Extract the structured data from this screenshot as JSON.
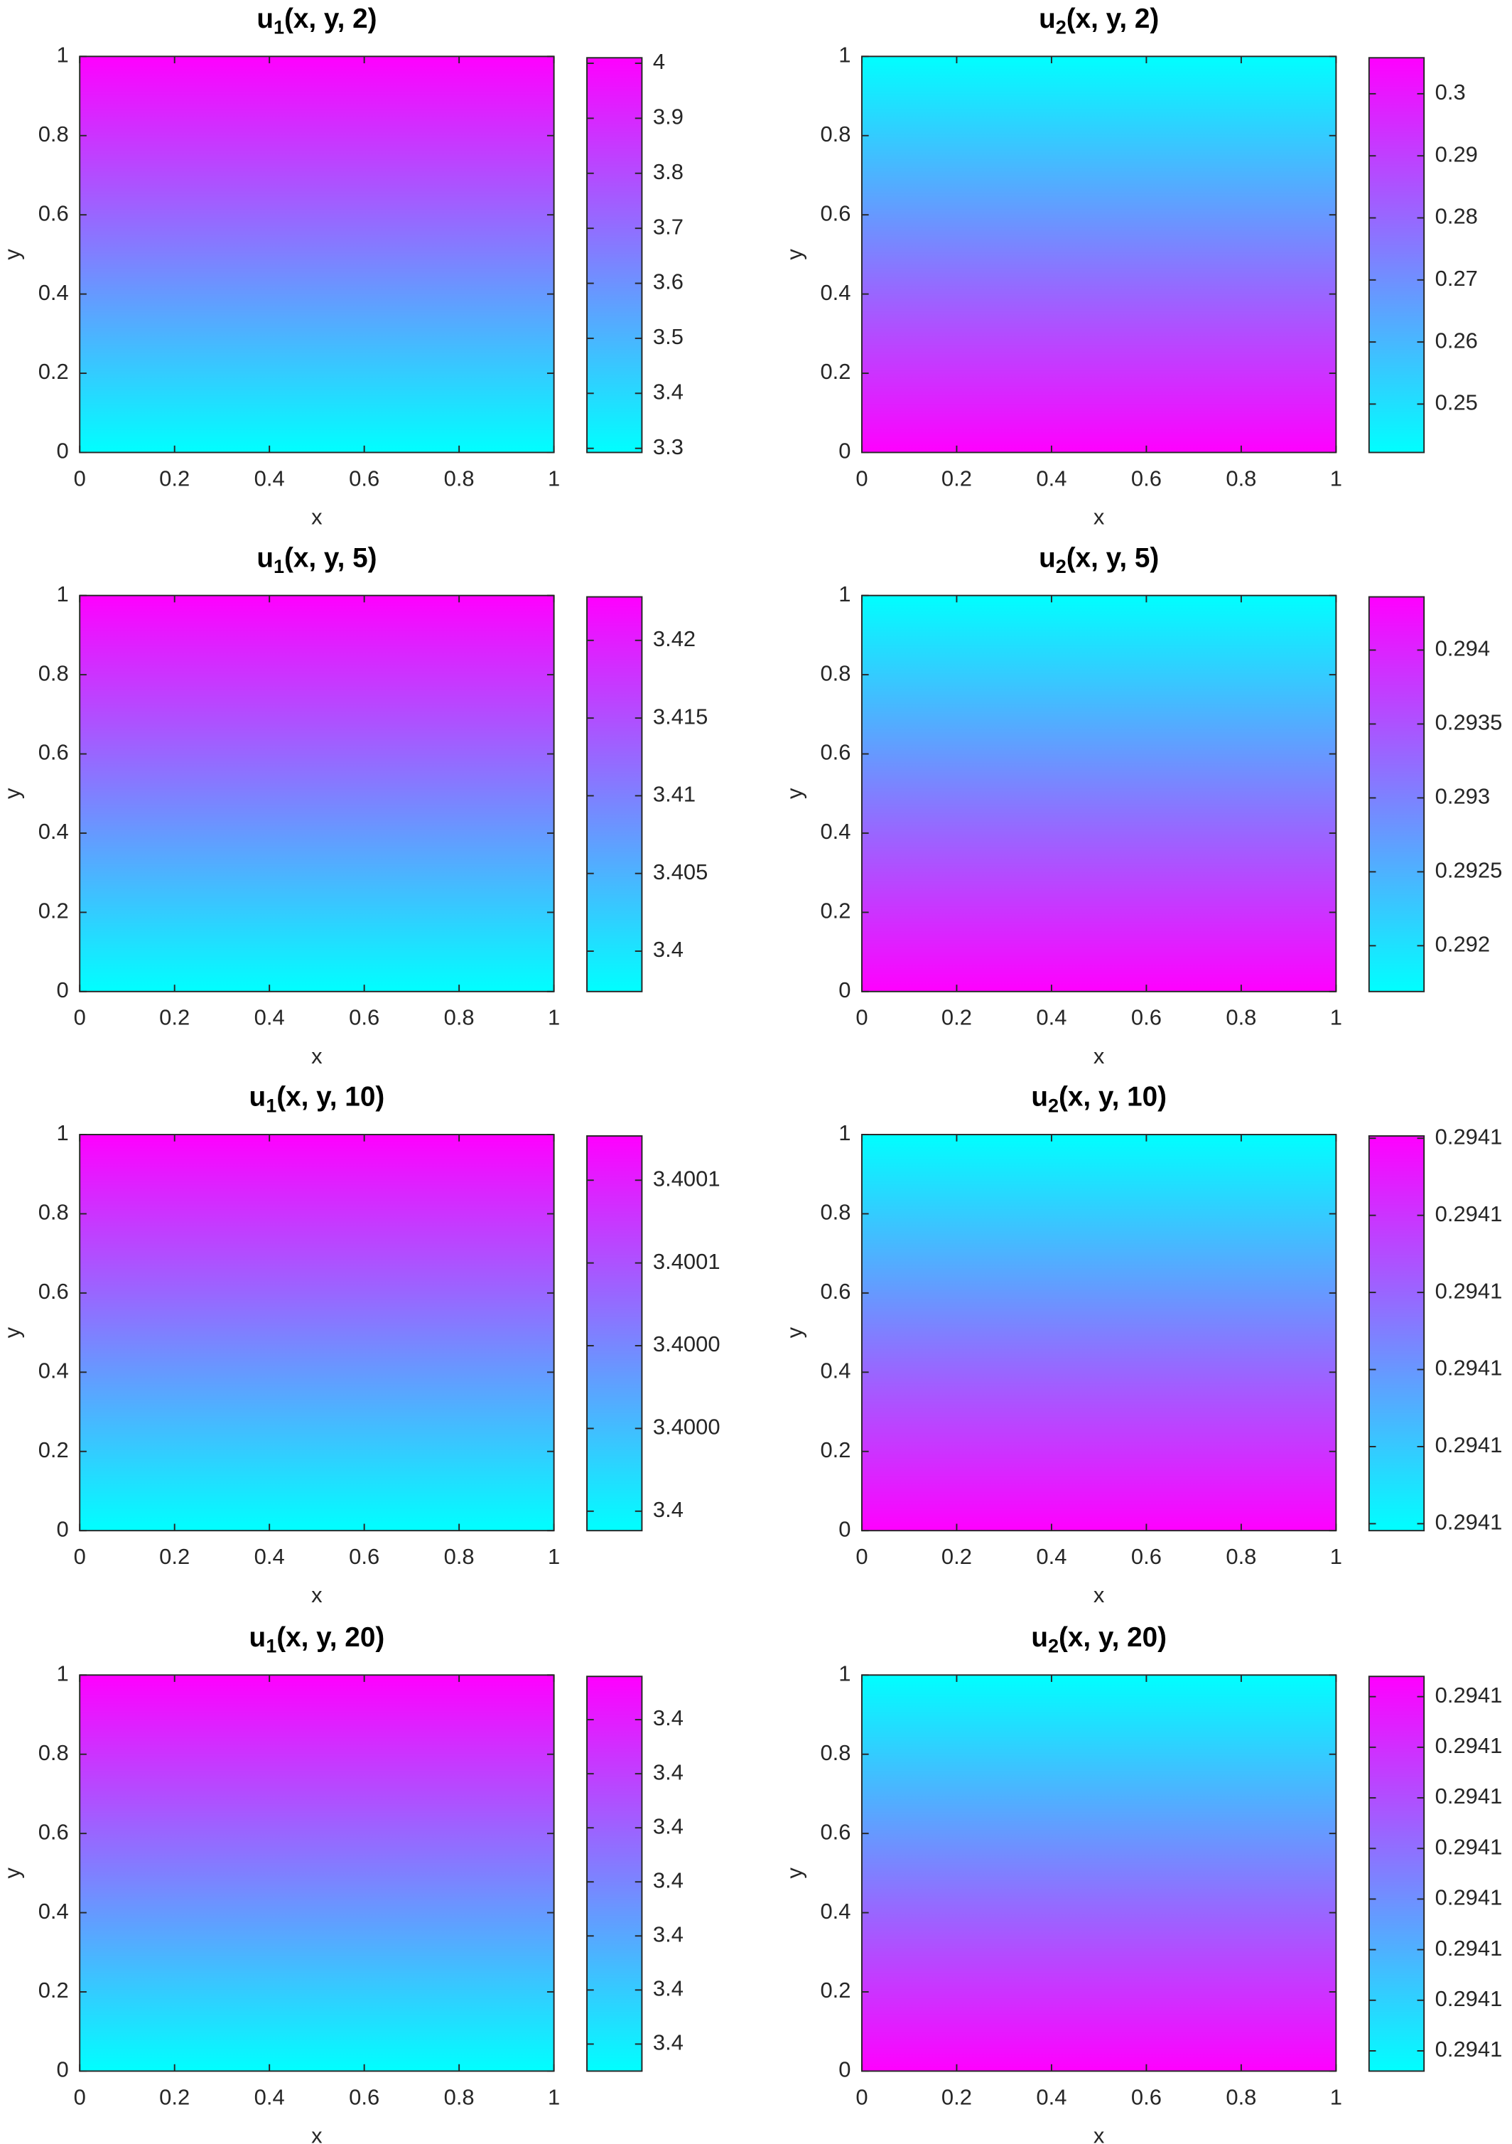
{
  "chart_data": [
    {
      "type": "heatmap",
      "title": [
        "u",
        "1",
        "(x, y, 2)"
      ],
      "xlabel": "x",
      "ylabel": "y",
      "xlim": [
        0,
        1
      ],
      "ylim": [
        0,
        1
      ],
      "xticks": [
        0,
        0.2,
        0.4,
        0.6,
        0.8,
        1
      ],
      "yticks": [
        0,
        0.2,
        0.4,
        0.6,
        0.8,
        1
      ],
      "y": [
        0,
        1
      ],
      "values": [
        3.2925,
        4.01
      ],
      "clim": [
        3.2925,
        4.01
      ],
      "cticks": [
        4,
        3.9,
        3.8,
        3.7,
        3.6,
        3.5,
        3.4,
        3.3
      ],
      "colormap": [
        "#00ffff",
        "#ff00ff"
      ]
    },
    {
      "type": "heatmap",
      "title": [
        "u",
        "2",
        "(x, y, 2)"
      ],
      "xlabel": "x",
      "ylabel": "y",
      "xlim": [
        0,
        1
      ],
      "ylim": [
        0,
        1
      ],
      "xticks": [
        0,
        0.2,
        0.4,
        0.6,
        0.8,
        1
      ],
      "yticks": [
        0,
        0.2,
        0.4,
        0.6,
        0.8,
        1
      ],
      "y": [
        0,
        1
      ],
      "values": [
        0.3058,
        0.2422
      ],
      "clim": [
        0.2422,
        0.3058
      ],
      "cticks": [
        0.3,
        0.29,
        0.28,
        0.27,
        0.26,
        0.25
      ],
      "colormap": [
        "#00ffff",
        "#ff00ff"
      ]
    },
    {
      "type": "heatmap",
      "title": [
        "u",
        "1",
        "(x, y, 5)"
      ],
      "xlabel": "x",
      "ylabel": "y",
      "xlim": [
        0,
        1
      ],
      "ylim": [
        0,
        1
      ],
      "xticks": [
        0,
        0.2,
        0.4,
        0.6,
        0.8,
        1
      ],
      "yticks": [
        0,
        0.2,
        0.4,
        0.6,
        0.8,
        1
      ],
      "y": [
        0,
        1
      ],
      "values": [
        3.3974,
        3.4228
      ],
      "clim": [
        3.3974,
        3.4228
      ],
      "cticks": [
        3.42,
        3.415,
        3.41,
        3.405,
        3.4
      ],
      "colormap": [
        "#00ffff",
        "#ff00ff"
      ]
    },
    {
      "type": "heatmap",
      "title": [
        "u",
        "2",
        "(x, y, 5)"
      ],
      "xlabel": "x",
      "ylabel": "y",
      "xlim": [
        0,
        1
      ],
      "ylim": [
        0,
        1
      ],
      "xticks": [
        0,
        0.2,
        0.4,
        0.6,
        0.8,
        1
      ],
      "yticks": [
        0,
        0.2,
        0.4,
        0.6,
        0.8,
        1
      ],
      "y": [
        0,
        1
      ],
      "values": [
        0.29436,
        0.29169
      ],
      "clim": [
        0.29169,
        0.29436
      ],
      "cticks": [
        0.294,
        0.2935,
        0.293,
        0.2925,
        0.292
      ],
      "colormap": [
        "#00ffff",
        "#ff00ff"
      ]
    },
    {
      "type": "heatmap",
      "title": [
        "u",
        "1",
        "(x, y, 10)"
      ],
      "xlabel": "x",
      "ylabel": "y",
      "xlim": [
        0,
        1
      ],
      "ylim": [
        0,
        1
      ],
      "xticks": [
        0,
        0.2,
        0.4,
        0.6,
        0.8,
        1
      ],
      "yticks": [
        0,
        0.2,
        0.4,
        0.6,
        0.8,
        1
      ],
      "y": [
        0,
        1
      ],
      "values": [
        3.3999953,
        3.4000907
      ],
      "clim": [
        3.3999953,
        3.4000907
      ],
      "cticks": [
        {
          "value": 3.40008,
          "label": "3.4001"
        },
        {
          "value": 3.40006,
          "label": "3.4001"
        },
        {
          "value": 3.40004,
          "label": "3.4000"
        },
        {
          "value": 3.40002,
          "label": "3.4000"
        },
        3.4
      ],
      "colormap": [
        "#00ffff",
        "#ff00ff"
      ]
    },
    {
      "type": "heatmap",
      "title": [
        "u",
        "2",
        "(x, y, 10)"
      ],
      "xlabel": "x",
      "ylabel": "y",
      "xlim": [
        0,
        1
      ],
      "ylim": [
        0,
        1
      ],
      "xticks": [
        0,
        0.2,
        0.4,
        0.6,
        0.8,
        1
      ],
      "yticks": [
        0,
        0.2,
        0.4,
        0.6,
        0.8,
        1
      ],
      "y": [
        0,
        1
      ],
      "values": [
        0.29412503,
        0.29411991
      ],
      "clim": [
        0.29411991,
        0.29412503
      ],
      "cticks": [
        {
          "value": 0.294125,
          "label": "0.2941"
        },
        {
          "value": 0.294124,
          "label": "0.2941"
        },
        {
          "value": 0.294123,
          "label": "0.2941"
        },
        {
          "value": 0.294122,
          "label": "0.2941"
        },
        {
          "value": 0.294121,
          "label": "0.2941"
        },
        {
          "value": 0.29412,
          "label": "0.2941"
        }
      ],
      "colormap": [
        "#00ffff",
        "#ff00ff"
      ]
    },
    {
      "type": "heatmap",
      "title": [
        "u",
        "1",
        "(x, y, 20)"
      ],
      "xlabel": "x",
      "ylabel": "y",
      "xlim": [
        0,
        1
      ],
      "ylim": [
        0,
        1
      ],
      "xticks": [
        0,
        0.2,
        0.4,
        0.6,
        0.8,
        1
      ],
      "yticks": [
        0,
        0.2,
        0.4,
        0.6,
        0.8,
        1
      ],
      "y": [
        0,
        1
      ],
      "values": [
        3.3999995,
        3.4000068
      ],
      "clim": [
        3.3999995,
        3.4000068
      ],
      "cticks": [
        {
          "value": 3.400006,
          "label": "3.4"
        },
        {
          "value": 3.400005,
          "label": "3.4"
        },
        {
          "value": 3.400004,
          "label": "3.4"
        },
        {
          "value": 3.400003,
          "label": "3.4"
        },
        {
          "value": 3.400002,
          "label": "3.4"
        },
        {
          "value": 3.400001,
          "label": "3.4"
        },
        3.4
      ],
      "colormap": [
        "#00ffff",
        "#ff00ff"
      ]
    },
    {
      "type": "heatmap",
      "title": [
        "u",
        "2",
        "(x, y, 20)"
      ],
      "xlabel": "x",
      "ylabel": "y",
      "xlim": [
        0,
        1
      ],
      "ylim": [
        0,
        1
      ],
      "xticks": [
        0,
        0.2,
        0.4,
        0.6,
        0.8,
        1
      ],
      "yticks": [
        0,
        0.2,
        0.4,
        0.6,
        0.8,
        1
      ],
      "y": [
        0,
        1
      ],
      "values": [
        0.29412074,
        0.29411996
      ],
      "clim": [
        0.29411996,
        0.29412074
      ],
      "cticks": [
        {
          "value": 0.2941207,
          "label": "0.2941"
        },
        {
          "value": 0.2941206,
          "label": "0.2941"
        },
        {
          "value": 0.2941205,
          "label": "0.2941"
        },
        {
          "value": 0.2941204,
          "label": "0.2941"
        },
        {
          "value": 0.2941203,
          "label": "0.2941"
        },
        {
          "value": 0.2941202,
          "label": "0.2941"
        },
        {
          "value": 0.2941201,
          "label": "0.2941"
        },
        {
          "value": 0.29412,
          "label": "0.2941"
        }
      ],
      "colormap": [
        "#00ffff",
        "#ff00ff"
      ]
    }
  ]
}
